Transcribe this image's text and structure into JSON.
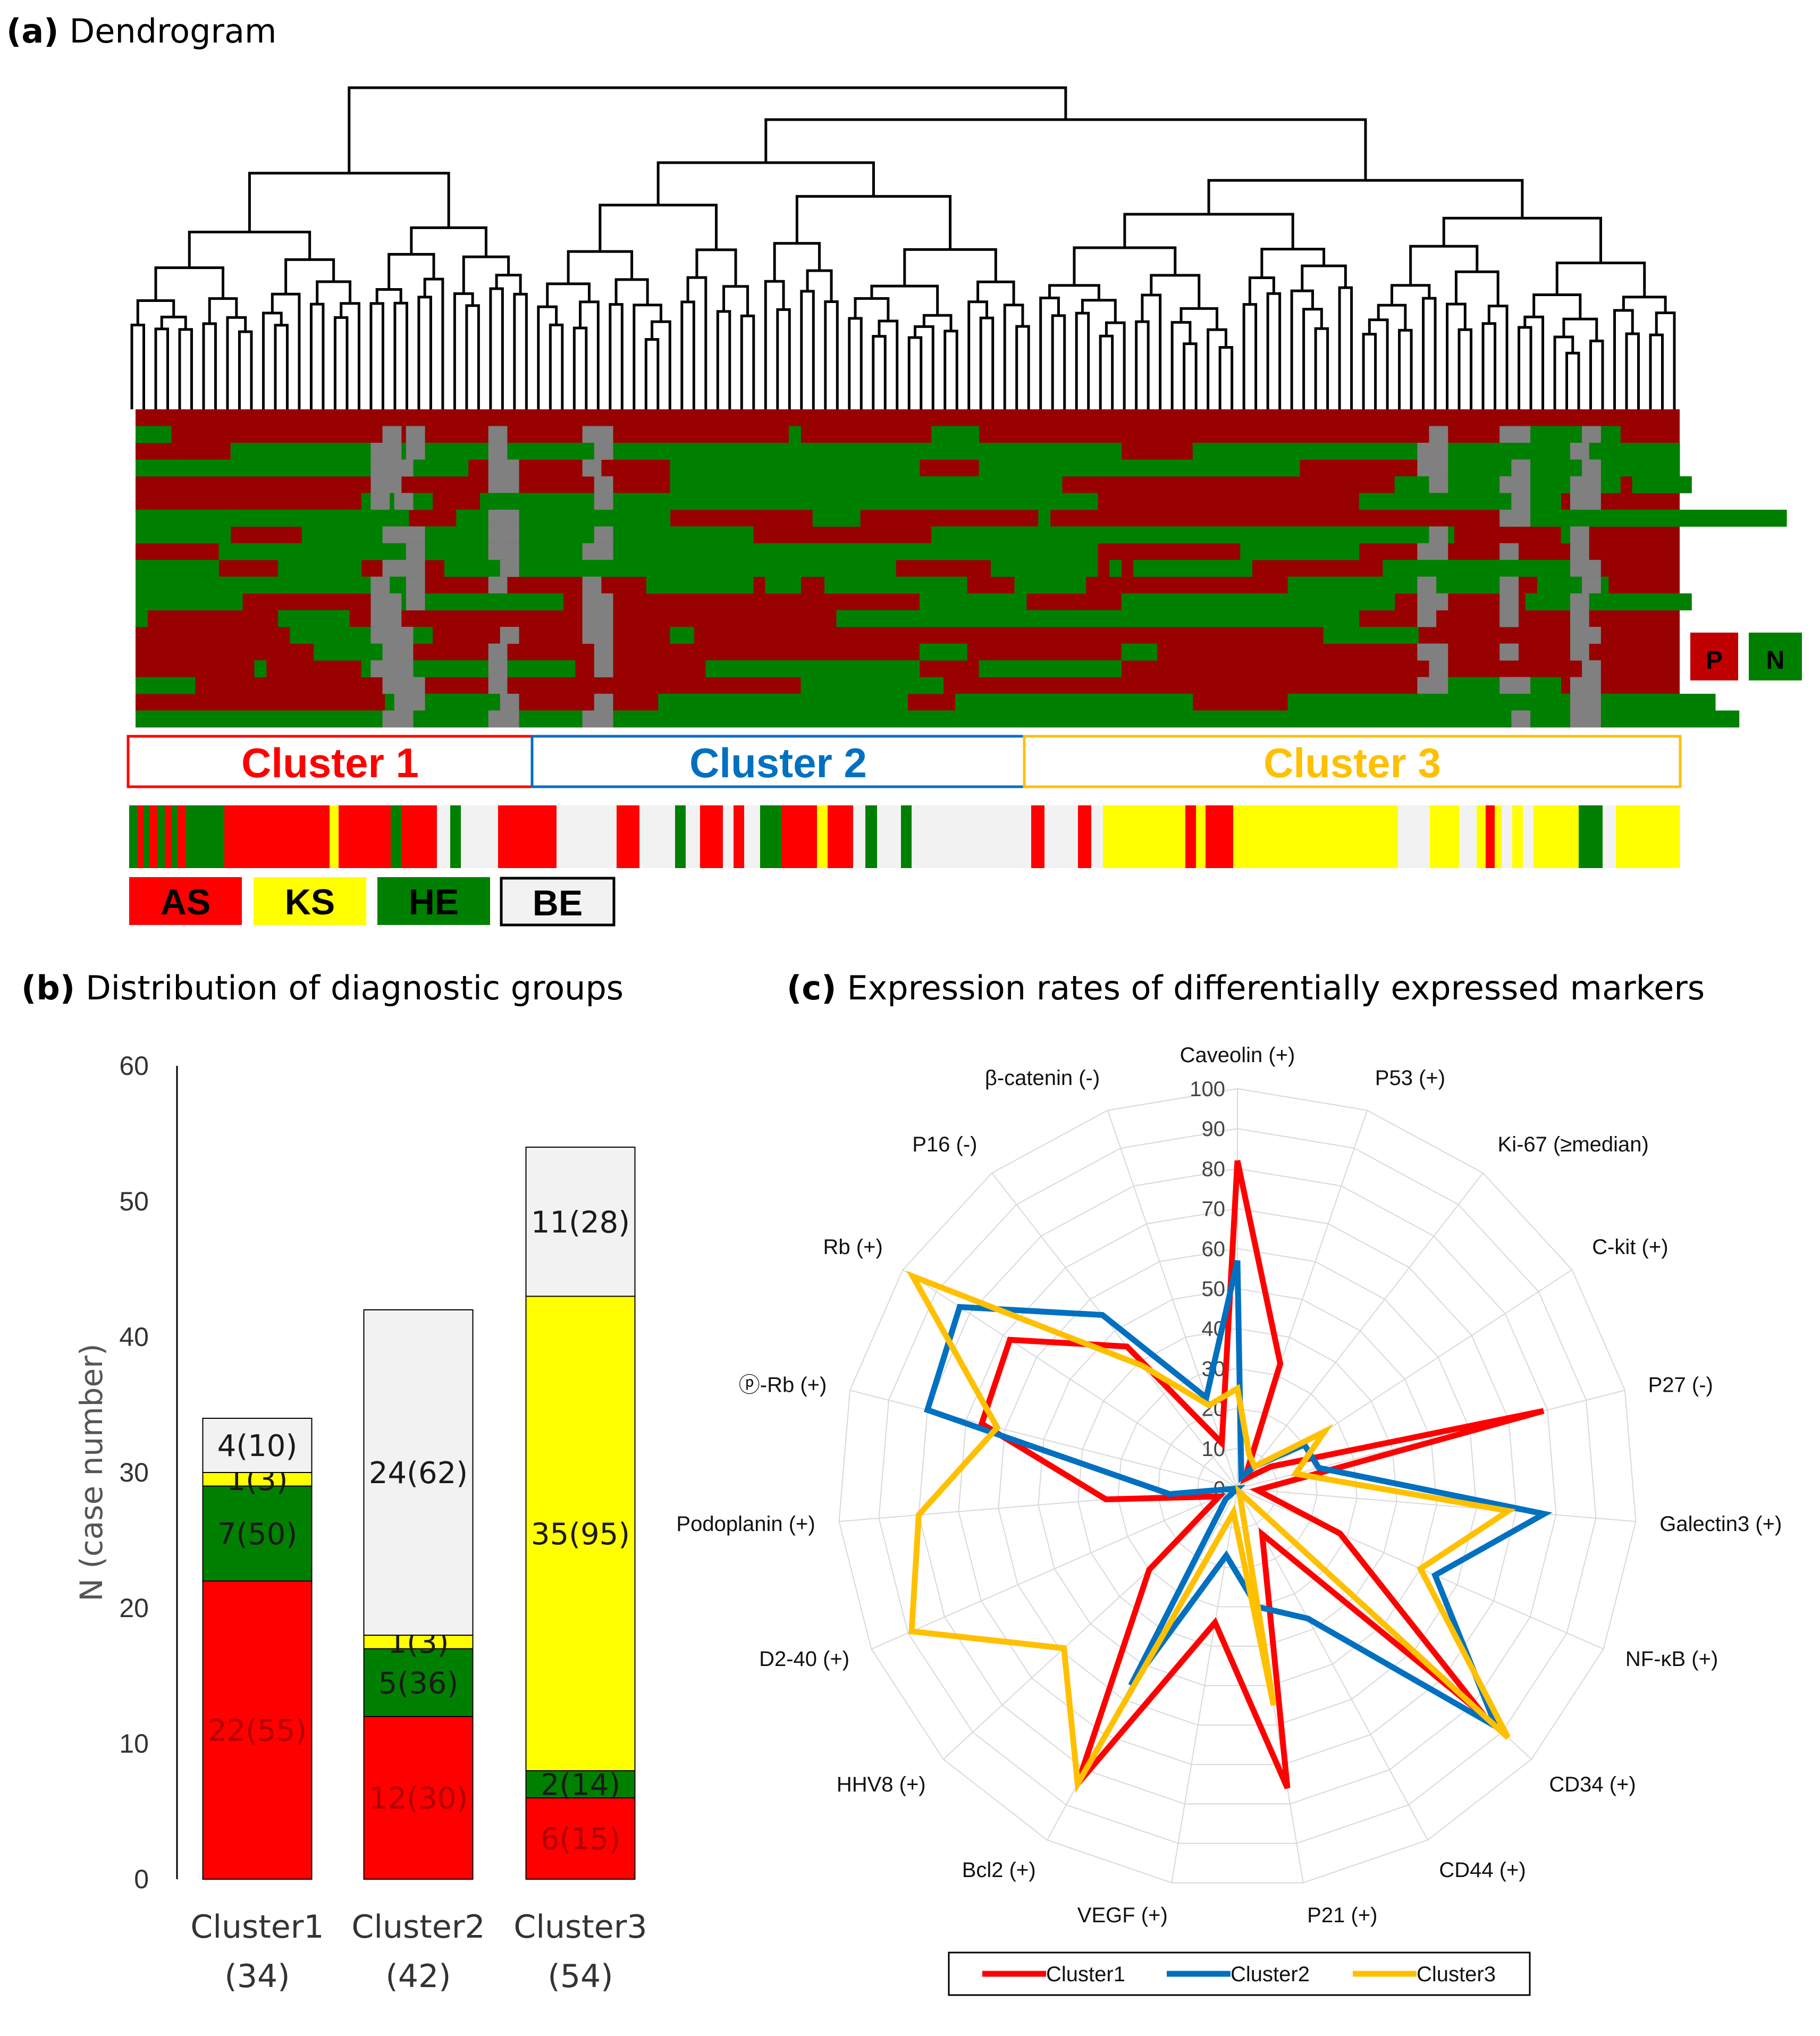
{
  "panel_a": {
    "label": "(a)",
    "title": "Dendrogram",
    "pn_legend": [
      "P",
      "N"
    ],
    "clusters": [
      {
        "name": "Cluster 1",
        "color": "#ff0000"
      },
      {
        "name": "Cluster 2",
        "color": "#0070c0"
      },
      {
        "name": "Cluster 3",
        "color": "#ffc000"
      }
    ],
    "diag_legend": [
      {
        "code": "AS",
        "color": "#ff0000"
      },
      {
        "code": "KS",
        "color": "#ffff00"
      },
      {
        "code": "HE",
        "color": "#008000"
      },
      {
        "code": "BE",
        "color": "#f2f2f2"
      }
    ],
    "colors": {
      "positive": "#990000",
      "negative": "#008000",
      "missing": "#808080"
    }
  },
  "panel_b": {
    "label": "(b)",
    "title": "Distribution of diagnostic groups"
  },
  "panel_c": {
    "label": "(c)",
    "title": "Expression rates of differentially expressed markers"
  },
  "chart_data": [
    {
      "type": "bar",
      "stacked": true,
      "ylabel": "N (case number)",
      "ylim": [
        0,
        60
      ],
      "yticks": [
        0,
        10,
        20,
        30,
        40,
        50,
        60
      ],
      "categories": [
        "Cluster1",
        "Cluster2",
        "Cluster3"
      ],
      "category_counts": [
        "(34)",
        "(42)",
        "(54)"
      ],
      "series": [
        {
          "name": "AS",
          "color": "#ff0000",
          "textColor": "#b00000",
          "values": [
            22,
            12,
            6
          ],
          "labels": [
            "22(55)",
            "12(30)",
            "6(15)"
          ]
        },
        {
          "name": "HE",
          "color": "#008000",
          "textColor": "#1a1a1a",
          "values": [
            7,
            5,
            2
          ],
          "labels": [
            "7(50)",
            "5(36)",
            "2(14)"
          ]
        },
        {
          "name": "KS",
          "color": "#ffff00",
          "textColor": "#1a1a1a",
          "values": [
            1,
            1,
            35
          ],
          "labels": [
            "1(3)",
            "1(3)",
            "35(95)"
          ]
        },
        {
          "name": "BE",
          "color": "#f2f2f2",
          "textColor": "#1a1a1a",
          "values": [
            4,
            24,
            11
          ],
          "labels": [
            "4(10)",
            "24(62)",
            "11(28)"
          ]
        }
      ]
    },
    {
      "type": "radar",
      "rlim": [
        0,
        100
      ],
      "rticks": [
        0,
        10,
        20,
        30,
        40,
        50,
        60,
        70,
        80,
        90,
        100
      ],
      "axes": [
        "Caveolin (+)",
        "P53 (+)",
        "Ki-67 (≥median)",
        "C-kit (+)",
        "P27 (-)",
        "Galectin3 (+)",
        "NF-κB (+)",
        "CD34 (+)",
        "CD44 (+)",
        "P21 (+)",
        "VEGF (+)",
        "Bcl2 (+)",
        "HHV8 (+)",
        "D2-40 (+)",
        "Podoplanin (+)",
        "ⓟ-Rb (+)",
        "Rb (+)",
        "P16 (-)",
        "β-catenin (-)"
      ],
      "series": [
        {
          "name": "Cluster1",
          "color": "#ff0000",
          "values": [
            82,
            33,
            3,
            10,
            79,
            5,
            28,
            84,
            13,
            76,
            34,
            84,
            30,
            5,
            33,
            66,
            68,
            45,
            12
          ]
        },
        {
          "name": "Cluster2",
          "color": "#0070c0",
          "values": [
            57,
            3,
            7,
            20,
            21,
            77,
            54,
            88,
            37,
            30,
            17,
            56,
            4,
            0,
            17,
            80,
            83,
            55,
            24
          ]
        },
        {
          "name": "Cluster3",
          "color": "#ffc000",
          "values": [
            25,
            9,
            7,
            26,
            15,
            68,
            50,
            92,
            1,
            55,
            6,
            84,
            59,
            89,
            80,
            62,
            97,
            39,
            22
          ]
        }
      ],
      "legend": "bottom"
    }
  ]
}
